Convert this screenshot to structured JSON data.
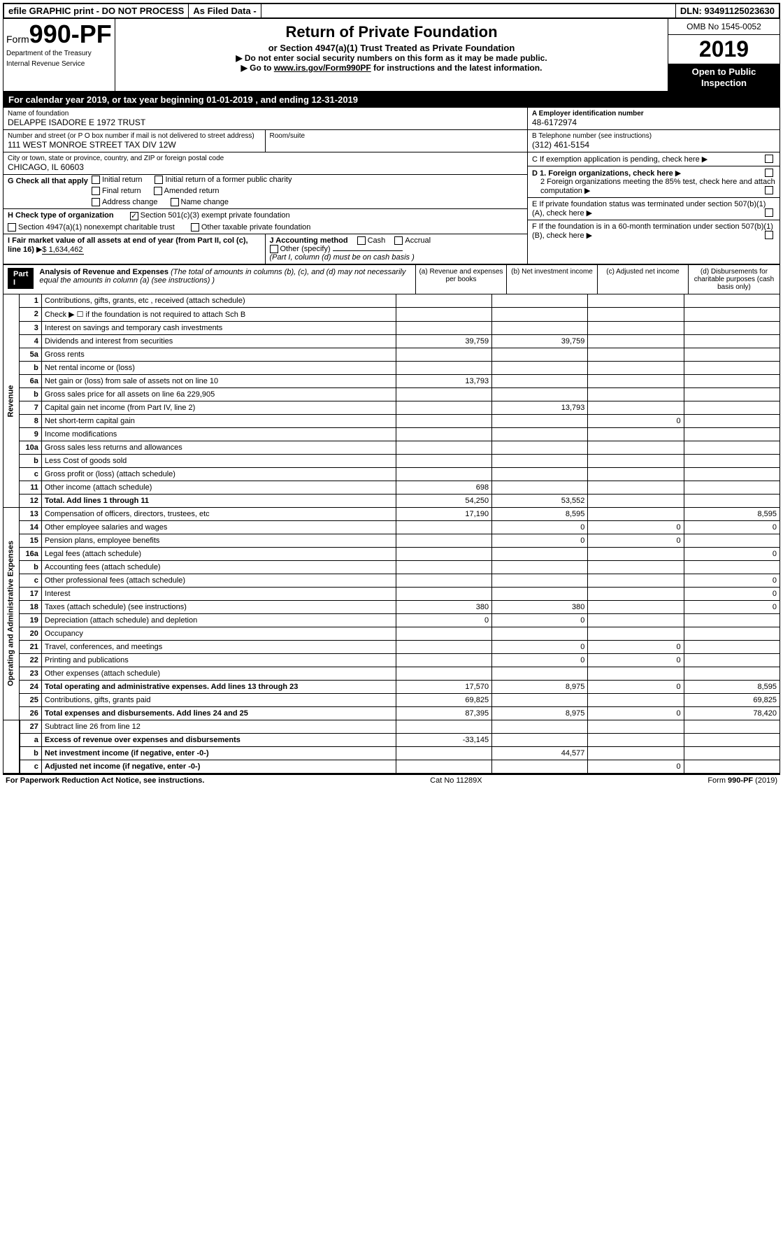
{
  "topbar": {
    "efile": "efile GRAPHIC print - DO NOT PROCESS",
    "asfiled": "As Filed Data -",
    "dln": "DLN: 93491125023630"
  },
  "header": {
    "form_prefix": "Form",
    "form_number": "990-PF",
    "dept1": "Department of the Treasury",
    "dept2": "Internal Revenue Service",
    "title": "Return of Private Foundation",
    "subtitle": "or Section 4947(a)(1) Trust Treated as Private Foundation",
    "notice1": "▶ Do not enter social security numbers on this form as it may be made public.",
    "notice2": "▶ Go to ",
    "notice_link": "www.irs.gov/Form990PF",
    "notice3": " for instructions and the latest information.",
    "omb": "OMB No 1545-0052",
    "year": "2019",
    "inspection": "Open to Public Inspection"
  },
  "tax_year_bar": {
    "prefix": "For calendar year 2019, or tax year beginning ",
    "begin": "01-01-2019",
    "mid": " , and ending ",
    "end": "12-31-2019"
  },
  "info": {
    "name_label": "Name of foundation",
    "name": "DELAPPE ISADORE E 1972 TRUST",
    "addr_label": "Number and street (or P O  box number if mail is not delivered to street address)",
    "room_label": "Room/suite",
    "addr": "111 WEST MONROE STREET TAX DIV 12W",
    "city_label": "City or town, state or province, country, and ZIP or foreign postal code",
    "city": "CHICAGO, IL  60603",
    "a_label": "A Employer identification number",
    "a_value": "48-6172974",
    "b_label": "B Telephone number (see instructions)",
    "b_value": "(312) 461-5154",
    "c_label": "C If exemption application is pending, check here",
    "d1_label": "D 1. Foreign organizations, check here",
    "d2_label": "2 Foreign organizations meeting the 85% test, check here and attach computation",
    "e_label": "E  If private foundation status was terminated under section 507(b)(1)(A), check here",
    "f_label": "F  If the foundation is in a 60-month termination under section 507(b)(1)(B), check here"
  },
  "g": {
    "label": "G Check all that apply",
    "initial": "Initial return",
    "initial_former": "Initial return of a former public charity",
    "final": "Final return",
    "amended": "Amended return",
    "addr_change": "Address change",
    "name_change": "Name change"
  },
  "h": {
    "label": "H Check type of organization",
    "opt1": "Section 501(c)(3) exempt private foundation",
    "opt2": "Section 4947(a)(1) nonexempt charitable trust",
    "opt3": "Other taxable private foundation"
  },
  "i": {
    "label": "I Fair market value of all assets at end of year (from Part II, col  (c), line 16)",
    "value": "$ 1,634,462"
  },
  "j": {
    "label": "J Accounting method",
    "cash": "Cash",
    "accrual": "Accrual",
    "other": "Other (specify)",
    "note": "(Part I, column (d) must be on cash basis )"
  },
  "part1": {
    "part": "Part I",
    "title": "Analysis of Revenue and Expenses",
    "note": " (The total of amounts in columns (b), (c), and (d) may not necessarily equal the amounts in column (a) (see instructions) )",
    "col_a": "(a) Revenue and expenses per books",
    "col_b": "(b) Net investment income",
    "col_c": "(c) Adjusted net income",
    "col_d": "(d) Disbursements for charitable purposes (cash basis only)"
  },
  "side": {
    "revenue": "Revenue",
    "expenses": "Operating and Administrative Expenses"
  },
  "rows": [
    {
      "n": "1",
      "d": "Contributions, gifts, grants, etc , received (attach schedule)",
      "a": "",
      "b": "",
      "c": "",
      "dv": ""
    },
    {
      "n": "2",
      "d": "Check ▶ ☐ if the foundation is not required to attach Sch B",
      "a": "",
      "b": "",
      "c": "",
      "dv": ""
    },
    {
      "n": "3",
      "d": "Interest on savings and temporary cash investments",
      "a": "",
      "b": "",
      "c": "",
      "dv": ""
    },
    {
      "n": "4",
      "d": "Dividends and interest from securities",
      "a": "39,759",
      "b": "39,759",
      "c": "",
      "dv": ""
    },
    {
      "n": "5a",
      "d": "Gross rents",
      "a": "",
      "b": "",
      "c": "",
      "dv": ""
    },
    {
      "n": "b",
      "d": "Net rental income or (loss)",
      "a": "",
      "b": "",
      "c": "",
      "dv": ""
    },
    {
      "n": "6a",
      "d": "Net gain or (loss) from sale of assets not on line 10",
      "a": "13,793",
      "b": "",
      "c": "",
      "dv": ""
    },
    {
      "n": "b",
      "d": "Gross sales price for all assets on line 6a          229,905",
      "a": "",
      "b": "",
      "c": "",
      "dv": ""
    },
    {
      "n": "7",
      "d": "Capital gain net income (from Part IV, line 2)",
      "a": "",
      "b": "13,793",
      "c": "",
      "dv": ""
    },
    {
      "n": "8",
      "d": "Net short-term capital gain",
      "a": "",
      "b": "",
      "c": "0",
      "dv": ""
    },
    {
      "n": "9",
      "d": "Income modifications",
      "a": "",
      "b": "",
      "c": "",
      "dv": ""
    },
    {
      "n": "10a",
      "d": "Gross sales less returns and allowances",
      "a": "",
      "b": "",
      "c": "",
      "dv": ""
    },
    {
      "n": "b",
      "d": "Less  Cost of goods sold",
      "a": "",
      "b": "",
      "c": "",
      "dv": ""
    },
    {
      "n": "c",
      "d": "Gross profit or (loss) (attach schedule)",
      "a": "",
      "b": "",
      "c": "",
      "dv": ""
    },
    {
      "n": "11",
      "d": "Other income (attach schedule)",
      "a": "698",
      "b": "",
      "c": "",
      "dv": ""
    },
    {
      "n": "12",
      "d": "Total. Add lines 1 through 11",
      "a": "54,250",
      "b": "53,552",
      "c": "",
      "dv": "",
      "bold": true
    }
  ],
  "exp_rows": [
    {
      "n": "13",
      "d": "Compensation of officers, directors, trustees, etc",
      "a": "17,190",
      "b": "8,595",
      "c": "",
      "dv": "8,595"
    },
    {
      "n": "14",
      "d": "Other employee salaries and wages",
      "a": "",
      "b": "0",
      "c": "0",
      "dv": "0"
    },
    {
      "n": "15",
      "d": "Pension plans, employee benefits",
      "a": "",
      "b": "0",
      "c": "0",
      "dv": ""
    },
    {
      "n": "16a",
      "d": "Legal fees (attach schedule)",
      "a": "",
      "b": "",
      "c": "",
      "dv": "0"
    },
    {
      "n": "b",
      "d": "Accounting fees (attach schedule)",
      "a": "",
      "b": "",
      "c": "",
      "dv": ""
    },
    {
      "n": "c",
      "d": "Other professional fees (attach schedule)",
      "a": "",
      "b": "",
      "c": "",
      "dv": "0"
    },
    {
      "n": "17",
      "d": "Interest",
      "a": "",
      "b": "",
      "c": "",
      "dv": "0"
    },
    {
      "n": "18",
      "d": "Taxes (attach schedule) (see instructions)",
      "a": "380",
      "b": "380",
      "c": "",
      "dv": "0",
      "icon": true
    },
    {
      "n": "19",
      "d": "Depreciation (attach schedule) and depletion",
      "a": "0",
      "b": "0",
      "c": "",
      "dv": ""
    },
    {
      "n": "20",
      "d": "Occupancy",
      "a": "",
      "b": "",
      "c": "",
      "dv": ""
    },
    {
      "n": "21",
      "d": "Travel, conferences, and meetings",
      "a": "",
      "b": "0",
      "c": "0",
      "dv": ""
    },
    {
      "n": "22",
      "d": "Printing and publications",
      "a": "",
      "b": "0",
      "c": "0",
      "dv": ""
    },
    {
      "n": "23",
      "d": "Other expenses (attach schedule)",
      "a": "",
      "b": "",
      "c": "",
      "dv": ""
    },
    {
      "n": "24",
      "d": "Total operating and administrative expenses. Add lines 13 through 23",
      "a": "17,570",
      "b": "8,975",
      "c": "0",
      "dv": "8,595",
      "bold": true
    },
    {
      "n": "25",
      "d": "Contributions, gifts, grants paid",
      "a": "69,825",
      "b": "",
      "c": "",
      "dv": "69,825"
    },
    {
      "n": "26",
      "d": "Total expenses and disbursements. Add lines 24 and 25",
      "a": "87,395",
      "b": "8,975",
      "c": "0",
      "dv": "78,420",
      "bold": true
    }
  ],
  "net_rows": [
    {
      "n": "27",
      "d": "Subtract line 26 from line 12",
      "a": "",
      "b": "",
      "c": "",
      "dv": ""
    },
    {
      "n": "a",
      "d": "Excess of revenue over expenses and disbursements",
      "a": "-33,145",
      "b": "",
      "c": "",
      "dv": "",
      "bold": true
    },
    {
      "n": "b",
      "d": "Net investment income (if negative, enter -0-)",
      "a": "",
      "b": "44,577",
      "c": "",
      "dv": "",
      "bold": true
    },
    {
      "n": "c",
      "d": "Adjusted net income (if negative, enter -0-)",
      "a": "",
      "b": "",
      "c": "0",
      "dv": "",
      "bold": true
    }
  ],
  "footer": {
    "left": "For Paperwork Reduction Act Notice, see instructions.",
    "center": "Cat No 11289X",
    "right": "Form 990-PF (2019)"
  }
}
